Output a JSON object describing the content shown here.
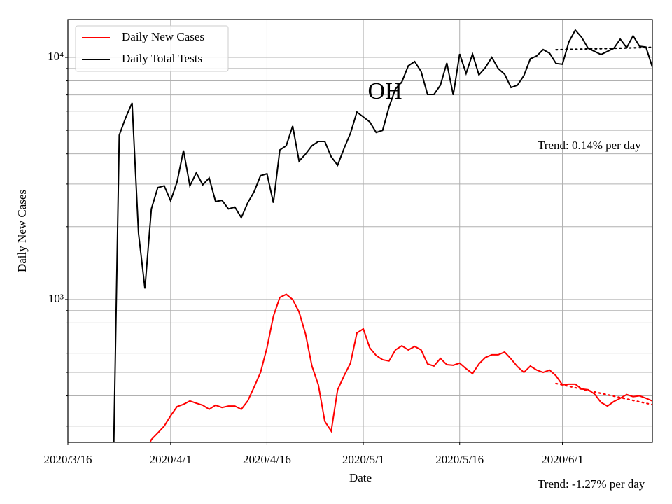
{
  "chart_data": {
    "type": "line",
    "title": "OH",
    "xlabel": "Date",
    "ylabel": "Daily New Cases",
    "log_y": true,
    "grid": true,
    "legend": "upper left",
    "xlim": [
      "2020/3/16",
      "2020/6/15"
    ],
    "xticks": [
      "2020/3/16",
      "2020/4/1",
      "2020/4/16",
      "2020/5/1",
      "2020/5/16",
      "2020/6/1"
    ],
    "ylim": [
      257,
      14330
    ],
    "yticks": [
      {
        "value": 1000,
        "label": "10³"
      },
      {
        "value": 10000,
        "label": "10⁴"
      }
    ],
    "yminor": [
      300,
      400,
      500,
      600,
      700,
      800,
      900,
      2000,
      3000,
      4000,
      5000,
      6000,
      7000,
      8000,
      9000
    ],
    "annotations": [
      "Trend: 0.14% per day",
      "Trend: -1.27% per day"
    ],
    "series": [
      {
        "name": "Daily New Cases",
        "color": "#ff0000",
        "x": [
          "2020/3/28",
          "2020/3/29",
          "2020/3/30",
          "2020/3/31",
          "2020/4/1",
          "2020/4/2",
          "2020/4/3",
          "2020/4/4",
          "2020/4/5",
          "2020/4/6",
          "2020/4/7",
          "2020/4/8",
          "2020/4/9",
          "2020/4/10",
          "2020/4/11",
          "2020/4/12",
          "2020/4/13",
          "2020/4/14",
          "2020/4/15",
          "2020/4/16",
          "2020/4/17",
          "2020/4/18",
          "2020/4/19",
          "2020/4/20",
          "2020/4/21",
          "2020/4/22",
          "2020/4/23",
          "2020/4/24",
          "2020/4/25",
          "2020/4/26",
          "2020/4/27",
          "2020/4/28",
          "2020/4/29",
          "2020/4/30",
          "2020/5/1",
          "2020/5/2",
          "2020/5/3",
          "2020/5/4",
          "2020/5/5",
          "2020/5/6",
          "2020/5/7",
          "2020/5/8",
          "2020/5/9",
          "2020/5/10",
          "2020/5/11",
          "2020/5/12",
          "2020/5/13",
          "2020/5/14",
          "2020/5/15",
          "2020/5/16",
          "2020/5/17",
          "2020/5/18",
          "2020/5/19",
          "2020/5/20",
          "2020/5/21",
          "2020/5/22",
          "2020/5/23",
          "2020/5/24",
          "2020/5/25",
          "2020/5/26",
          "2020/5/27",
          "2020/5/28",
          "2020/5/29",
          "2020/5/30",
          "2020/5/31",
          "2020/6/1",
          "2020/6/2",
          "2020/6/3",
          "2020/6/4",
          "2020/6/5",
          "2020/6/6",
          "2020/6/7",
          "2020/6/8",
          "2020/6/9",
          "2020/6/10",
          "2020/6/11",
          "2020/6/12",
          "2020/6/13",
          "2020/6/14",
          "2020/6/15"
        ],
        "values": [
          230,
          264,
          281,
          300,
          331,
          361,
          369,
          381,
          373,
          366,
          352,
          366,
          358,
          363,
          363,
          352,
          381,
          435,
          500,
          632,
          853,
          1020,
          1050,
          1000,
          887,
          721,
          531,
          444,
          314,
          286,
          424,
          484,
          546,
          727,
          756,
          632,
          587,
          564,
          557,
          619,
          644,
          619,
          640,
          619,
          542,
          531,
          571,
          538,
          535,
          546,
          518,
          494,
          542,
          576,
          591,
          591,
          607,
          568,
          528,
          500,
          531,
          511,
          500,
          511,
          484,
          444,
          447,
          447,
          427,
          424,
          407,
          376,
          363,
          379,
          391,
          405,
          397,
          400,
          391,
          381
        ]
      },
      {
        "name": "Daily Total Tests",
        "color": "#000000",
        "x": [
          "2020/3/23",
          "2020/3/24",
          "2020/3/25",
          "2020/3/26",
          "2020/3/27",
          "2020/3/28",
          "2020/3/29",
          "2020/3/30",
          "2020/3/31",
          "2020/4/1",
          "2020/4/2",
          "2020/4/3",
          "2020/4/4",
          "2020/4/5",
          "2020/4/6",
          "2020/4/7",
          "2020/4/8",
          "2020/4/9",
          "2020/4/10",
          "2020/4/11",
          "2020/4/12",
          "2020/4/13",
          "2020/4/14",
          "2020/4/15",
          "2020/4/16",
          "2020/4/17",
          "2020/4/18",
          "2020/4/19",
          "2020/4/20",
          "2020/4/21",
          "2020/4/22",
          "2020/4/23",
          "2020/4/24",
          "2020/4/25",
          "2020/4/26",
          "2020/4/27",
          "2020/4/28",
          "2020/4/29",
          "2020/4/30",
          "2020/5/1",
          "2020/5/2",
          "2020/5/3",
          "2020/5/4",
          "2020/5/5",
          "2020/5/6",
          "2020/5/7",
          "2020/5/8",
          "2020/5/9",
          "2020/5/10",
          "2020/5/11",
          "2020/5/12",
          "2020/5/13",
          "2020/5/14",
          "2020/5/15",
          "2020/5/16",
          "2020/5/17",
          "2020/5/18",
          "2020/5/19",
          "2020/5/20",
          "2020/5/21",
          "2020/5/22",
          "2020/5/23",
          "2020/5/24",
          "2020/5/25",
          "2020/5/26",
          "2020/5/27",
          "2020/5/28",
          "2020/5/29",
          "2020/5/30",
          "2020/5/31",
          "2020/6/1",
          "2020/6/2",
          "2020/6/3",
          "2020/6/4",
          "2020/6/5",
          "2020/6/6",
          "2020/6/7",
          "2020/6/8",
          "2020/6/9",
          "2020/6/10",
          "2020/6/11",
          "2020/6/12",
          "2020/6/13",
          "2020/6/14",
          "2020/6/15"
        ],
        "values": [
          150,
          4780,
          5640,
          6490,
          1880,
          1110,
          2370,
          2900,
          2950,
          2560,
          3060,
          4130,
          2950,
          3340,
          2980,
          3180,
          2540,
          2570,
          2370,
          2410,
          2180,
          2510,
          2790,
          3250,
          3310,
          2510,
          4150,
          4320,
          5210,
          3730,
          3990,
          4320,
          4500,
          4500,
          3890,
          3590,
          4210,
          4870,
          5950,
          5680,
          5420,
          4900,
          5000,
          6240,
          7410,
          7920,
          9230,
          9610,
          8740,
          7030,
          7030,
          7680,
          9480,
          6990,
          10330,
          8580,
          10330,
          8460,
          9070,
          10000,
          8990,
          8520,
          7510,
          7680,
          8410,
          9860,
          10140,
          10770,
          10400,
          9440,
          9370,
          11580,
          12970,
          12090,
          10900,
          10590,
          10270,
          10590,
          10900,
          11900,
          10970,
          12280,
          11120,
          11030,
          9110
        ]
      }
    ],
    "trends": [
      {
        "color": "#ff0000",
        "x": [
          "2020/5/31",
          "2020/6/15"
        ],
        "values": [
          450,
          368
        ]
      },
      {
        "color": "#000000",
        "x": [
          "2020/5/31",
          "2020/6/15"
        ],
        "values": [
          10750,
          11000
        ]
      }
    ]
  }
}
